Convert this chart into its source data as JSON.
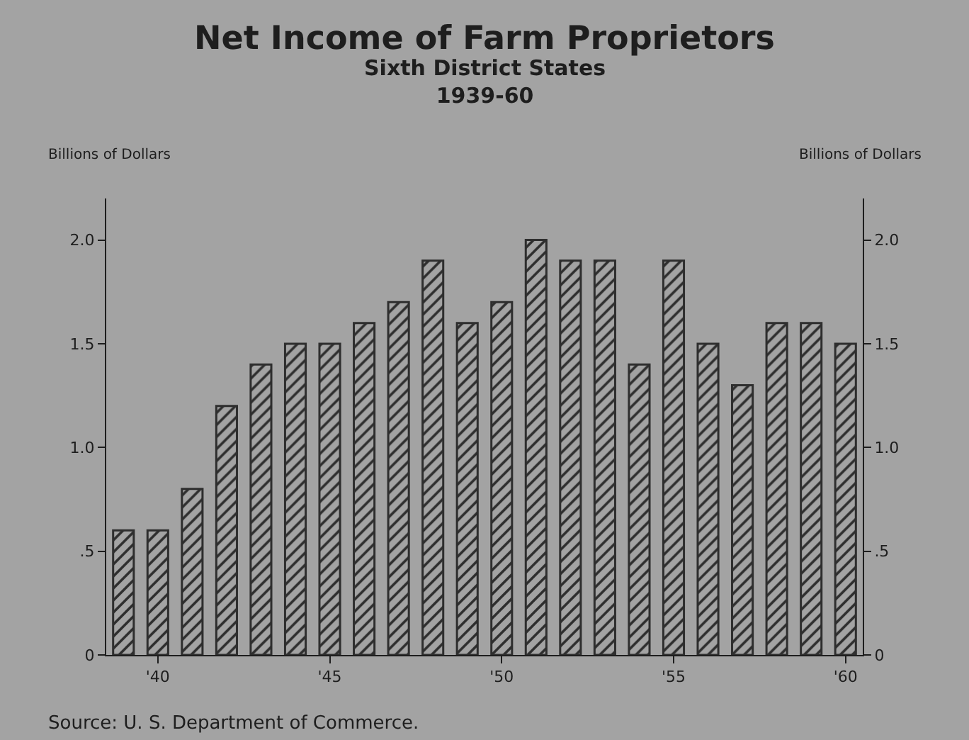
{
  "chart_data": {
    "type": "bar",
    "title": "Net Income of Farm Proprietors",
    "subtitle": "Sixth District States\n1939-60",
    "ylabel": "Billions of Dollars",
    "y2label": "Billions of Dollars",
    "x": [
      1939,
      1940,
      1941,
      1942,
      1943,
      1944,
      1945,
      1946,
      1947,
      1948,
      1949,
      1950,
      1951,
      1952,
      1953,
      1954,
      1955,
      1956,
      1957,
      1958,
      1959,
      1960
    ],
    "values": [
      0.6,
      0.6,
      0.8,
      1.2,
      1.4,
      1.5,
      1.5,
      1.6,
      1.7,
      1.9,
      1.6,
      1.7,
      2.0,
      1.9,
      1.9,
      1.4,
      1.9,
      1.5,
      1.3,
      1.6,
      1.6,
      1.5
    ],
    "color": "#2e2e2e",
    "xlim": [
      1938.5,
      1960.5
    ],
    "xticks": [
      {
        "value": 1940,
        "label": "'40"
      },
      {
        "value": 1945,
        "label": "'45"
      },
      {
        "value": 1950,
        "label": "'50"
      },
      {
        "value": 1955,
        "label": "'55"
      },
      {
        "value": 1960,
        "label": "'60"
      }
    ],
    "ylim": [
      0,
      2.2
    ],
    "yticks": [
      0,
      {
        "value": 0.5,
        "label": ".5"
      },
      {
        "value": 1,
        "label": "1.0"
      },
      {
        "value": 1.5,
        "label": "1.5"
      },
      {
        "value": 2,
        "label": "2.0"
      }
    ],
    "y2lim": [
      0,
      2.2
    ],
    "y2ticks": [
      0,
      {
        "value": 0.5,
        "label": ".5"
      },
      {
        "value": 1,
        "label": "1.0"
      },
      {
        "value": 1.5,
        "label": "1.5"
      },
      {
        "value": 2,
        "label": "2.0"
      }
    ],
    "grid": false,
    "legend": false,
    "annotations": [
      "Source: U. S. Department of Commerce."
    ]
  }
}
